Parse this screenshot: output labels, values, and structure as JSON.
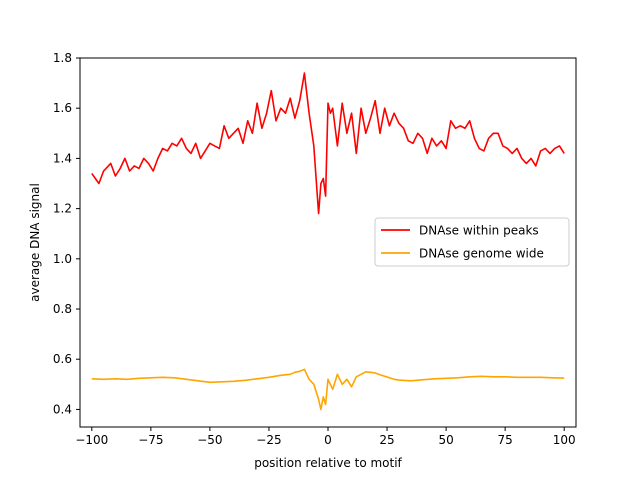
{
  "chart_data": {
    "type": "line",
    "xlabel": "position relative to motif",
    "ylabel": "average DNA signal",
    "xlim": [
      -105,
      105
    ],
    "ylim": [
      0.33,
      1.8
    ],
    "x_ticks": [
      -100,
      -75,
      -50,
      -25,
      0,
      25,
      50,
      75,
      100
    ],
    "x_tick_labels": [
      "−100",
      "−75",
      "−50",
      "−25",
      "0",
      "25",
      "50",
      "75",
      "100"
    ],
    "y_ticks": [
      0.4,
      0.6,
      0.8,
      1.0,
      1.2,
      1.4,
      1.6,
      1.8
    ],
    "y_tick_labels": [
      "0.4",
      "0.6",
      "0.8",
      "1.0",
      "1.2",
      "1.4",
      "1.6",
      "1.8"
    ],
    "grid": false,
    "legend_position": "center-right",
    "series": [
      {
        "name": "DNAse within peaks",
        "color": "#ff0000",
        "x": [
          -100,
          -97,
          -95,
          -92,
          -90,
          -88,
          -86,
          -84,
          -82,
          -80,
          -78,
          -76,
          -74,
          -72,
          -70,
          -68,
          -66,
          -64,
          -62,
          -60,
          -58,
          -56,
          -54,
          -52,
          -50,
          -48,
          -46,
          -44,
          -42,
          -40,
          -38,
          -36,
          -34,
          -32,
          -30,
          -28,
          -26,
          -24,
          -22,
          -20,
          -18,
          -16,
          -14,
          -12,
          -10,
          -8,
          -6,
          -4,
          -3,
          -2,
          -1,
          0,
          1,
          2,
          4,
          6,
          8,
          10,
          12,
          14,
          16,
          18,
          20,
          22,
          24,
          26,
          28,
          30,
          32,
          34,
          36,
          38,
          40,
          42,
          44,
          46,
          48,
          50,
          52,
          54,
          56,
          58,
          60,
          62,
          64,
          66,
          68,
          70,
          72,
          74,
          76,
          78,
          80,
          82,
          84,
          86,
          88,
          90,
          92,
          94,
          96,
          98,
          100
        ],
        "y": [
          1.34,
          1.3,
          1.35,
          1.38,
          1.33,
          1.36,
          1.4,
          1.35,
          1.37,
          1.36,
          1.4,
          1.38,
          1.35,
          1.4,
          1.44,
          1.43,
          1.46,
          1.45,
          1.48,
          1.44,
          1.42,
          1.46,
          1.4,
          1.43,
          1.46,
          1.45,
          1.44,
          1.53,
          1.48,
          1.5,
          1.52,
          1.46,
          1.55,
          1.5,
          1.62,
          1.52,
          1.58,
          1.67,
          1.55,
          1.6,
          1.58,
          1.64,
          1.56,
          1.63,
          1.74,
          1.58,
          1.45,
          1.18,
          1.3,
          1.32,
          1.25,
          1.62,
          1.58,
          1.6,
          1.45,
          1.62,
          1.5,
          1.58,
          1.42,
          1.6,
          1.5,
          1.56,
          1.63,
          1.5,
          1.6,
          1.53,
          1.58,
          1.54,
          1.52,
          1.47,
          1.46,
          1.5,
          1.48,
          1.42,
          1.48,
          1.45,
          1.47,
          1.44,
          1.55,
          1.52,
          1.53,
          1.52,
          1.55,
          1.48,
          1.44,
          1.43,
          1.48,
          1.5,
          1.5,
          1.45,
          1.44,
          1.42,
          1.44,
          1.4,
          1.38,
          1.4,
          1.37,
          1.43,
          1.44,
          1.42,
          1.44,
          1.45,
          1.42
        ]
      },
      {
        "name": "DNAse genome wide",
        "color": "#ffa500",
        "x": [
          -100,
          -95,
          -90,
          -85,
          -80,
          -75,
          -70,
          -65,
          -60,
          -55,
          -50,
          -45,
          -40,
          -35,
          -30,
          -25,
          -20,
          -16,
          -14,
          -12,
          -10,
          -8,
          -6,
          -4,
          -3,
          -2,
          -1,
          0,
          1,
          2,
          4,
          6,
          8,
          10,
          12,
          14,
          16,
          18,
          20,
          22,
          24,
          26,
          28,
          30,
          35,
          40,
          45,
          50,
          55,
          60,
          65,
          70,
          75,
          80,
          85,
          90,
          95,
          100
        ],
        "y": [
          0.522,
          0.52,
          0.522,
          0.52,
          0.524,
          0.526,
          0.528,
          0.526,
          0.52,
          0.514,
          0.508,
          0.51,
          0.512,
          0.516,
          0.522,
          0.528,
          0.536,
          0.54,
          0.548,
          0.552,
          0.56,
          0.52,
          0.5,
          0.44,
          0.4,
          0.45,
          0.42,
          0.52,
          0.5,
          0.48,
          0.54,
          0.5,
          0.52,
          0.49,
          0.53,
          0.54,
          0.55,
          0.548,
          0.545,
          0.538,
          0.532,
          0.526,
          0.52,
          0.517,
          0.514,
          0.518,
          0.522,
          0.524,
          0.526,
          0.53,
          0.532,
          0.53,
          0.53,
          0.528,
          0.528,
          0.528,
          0.526,
          0.525
        ]
      }
    ]
  }
}
